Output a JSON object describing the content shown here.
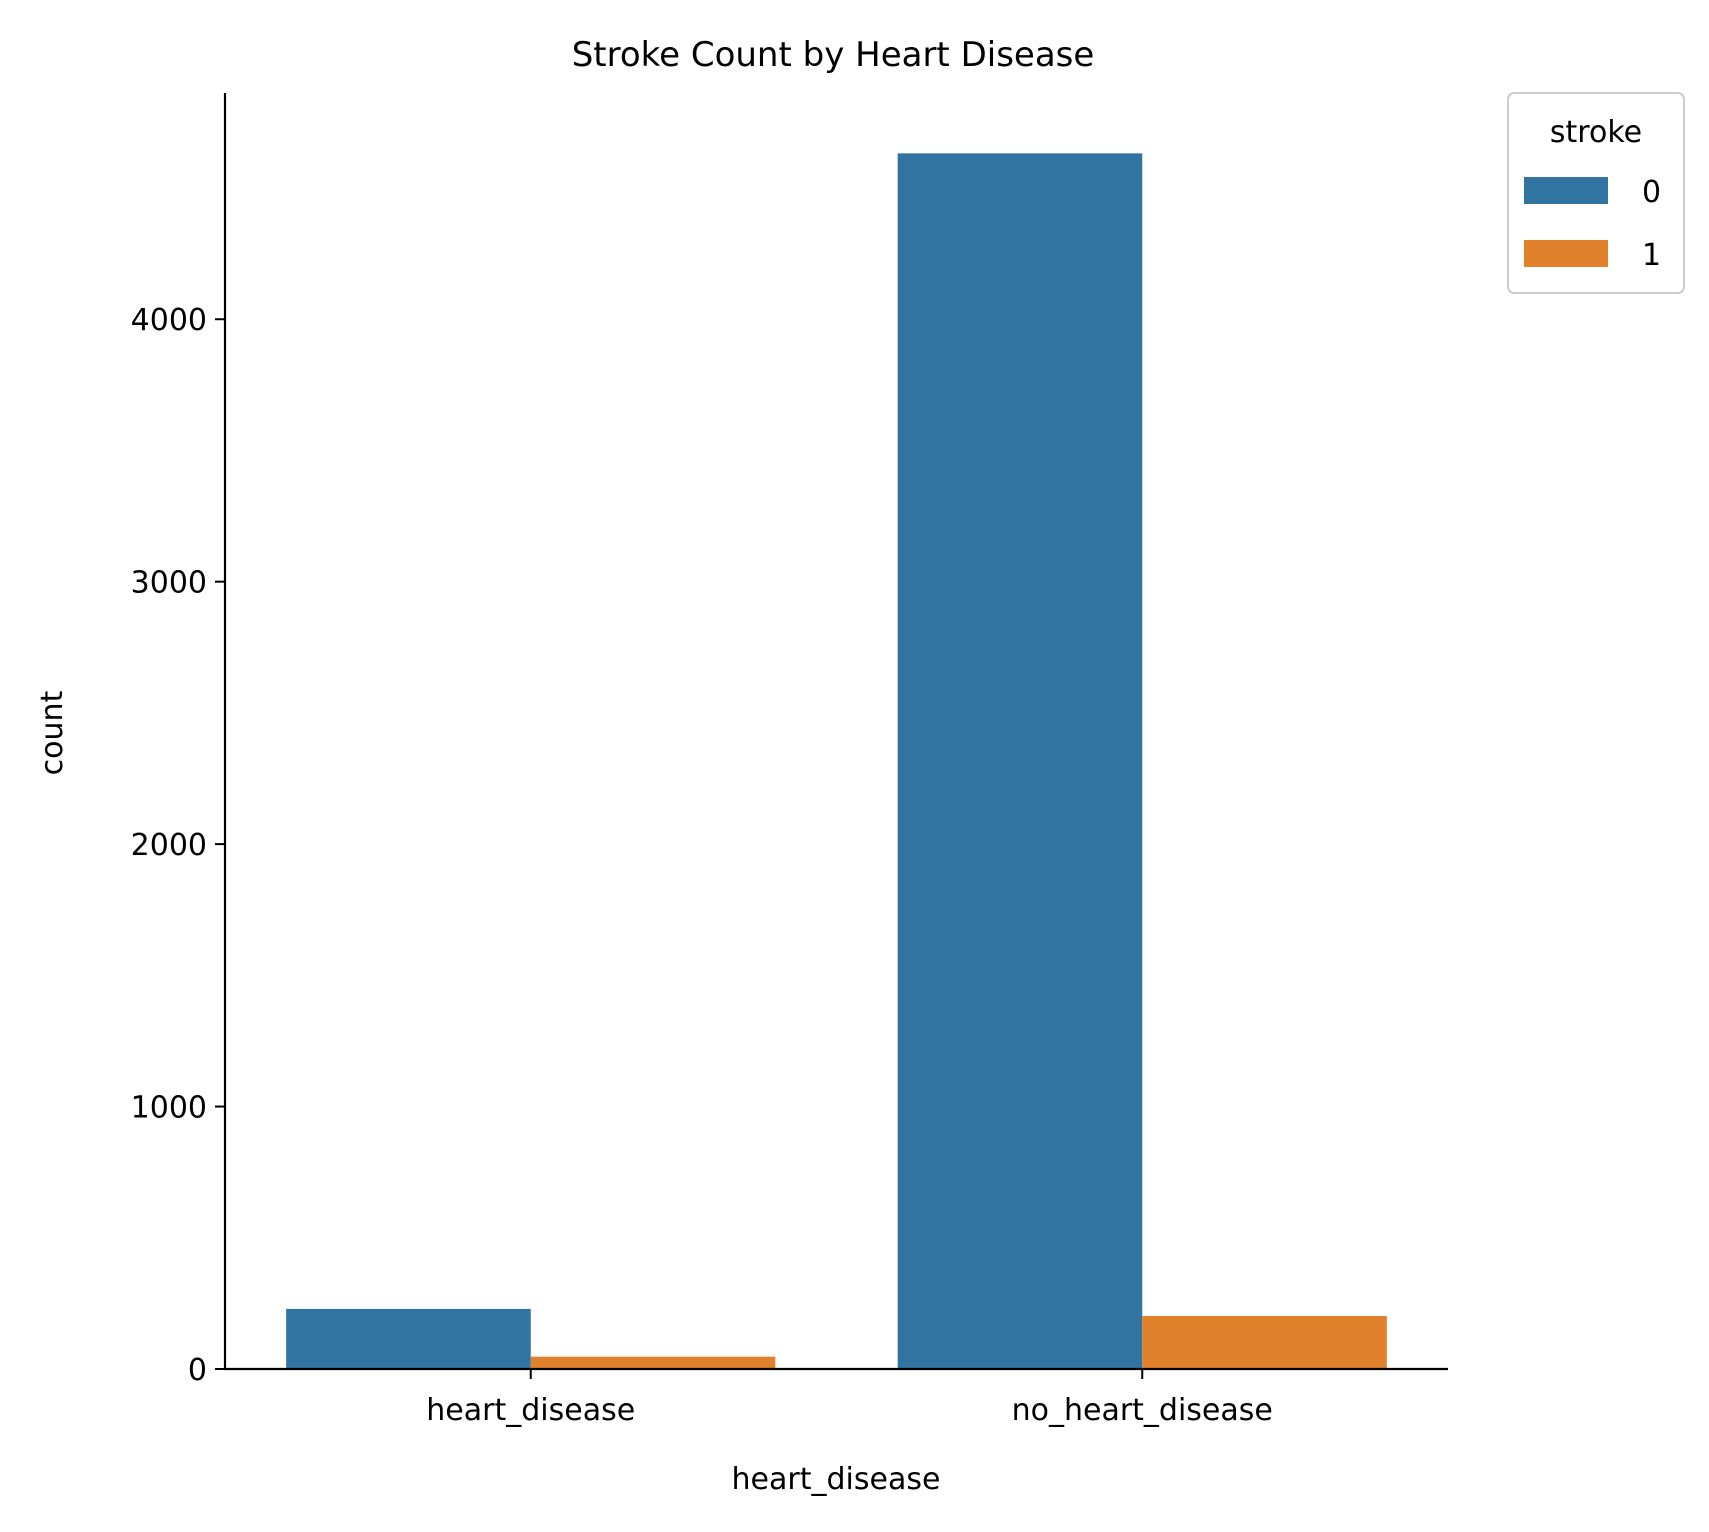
{
  "chart_data": {
    "type": "bar",
    "title": "Stroke Count by Heart Disease",
    "xlabel": "heart_disease",
    "ylabel": "count",
    "categories": [
      "heart_disease",
      "no_heart_disease"
    ],
    "series": [
      {
        "name": "0",
        "values": [
          229,
          4632
        ],
        "color": "#3274a1"
      },
      {
        "name": "1",
        "values": [
          47,
          202
        ],
        "color": "#e1812c"
      }
    ],
    "ylim": [
      0,
      4862
    ],
    "yticks": [
      0,
      1000,
      2000,
      3000,
      4000
    ],
    "grid": false,
    "legend": {
      "title": "stroke",
      "position": "top-right, outside plot"
    }
  }
}
